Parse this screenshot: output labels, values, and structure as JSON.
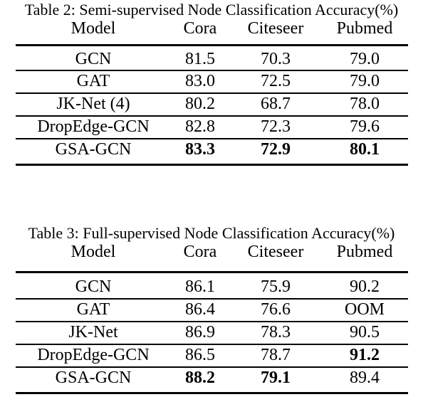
{
  "columns": [
    "Model",
    "Cora",
    "Citeseer",
    "Pubmed"
  ],
  "tables": [
    {
      "caption": "Table 2: Semi-supervised Node Classification Accuracy(%)",
      "rows": [
        {
          "model": "GCN",
          "cora": "81.5",
          "citeseer": "70.3",
          "pubmed": "79.0"
        },
        {
          "model": "GAT",
          "cora": "83.0",
          "citeseer": "72.5",
          "pubmed": "79.0"
        },
        {
          "model": "JK-Net (4)",
          "cora": "80.2",
          "citeseer": "68.7",
          "pubmed": "78.0"
        },
        {
          "model": "DropEdge-GCN",
          "cora": "82.8",
          "citeseer": "72.3",
          "pubmed": "79.6"
        },
        {
          "model": "GSA-GCN",
          "cora": "83.3",
          "citeseer": "72.9",
          "pubmed": "80.1"
        }
      ]
    },
    {
      "caption": "Table 3: Full-supervised Node Classification Accuracy(%)",
      "rows": [
        {
          "model": "GCN",
          "cora": "86.1",
          "citeseer": "75.9",
          "pubmed": "90.2"
        },
        {
          "model": "GAT",
          "cora": "86.4",
          "citeseer": "76.6",
          "pubmed": "OOM"
        },
        {
          "model": "JK-Net",
          "cora": "86.9",
          "citeseer": "78.3",
          "pubmed": "90.5"
        },
        {
          "model": "DropEdge-GCN",
          "cora": "86.5",
          "citeseer": "78.7",
          "pubmed": "91.2"
        },
        {
          "model": "GSA-GCN",
          "cora": "88.2",
          "citeseer": "79.1",
          "pubmed": "89.4"
        }
      ]
    }
  ]
}
